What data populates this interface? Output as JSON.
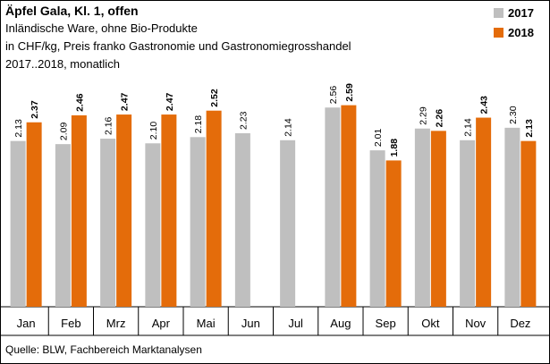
{
  "chart_data": {
    "type": "bar",
    "title": "Äpfel Gala, Kl. 1, offen",
    "subtitle": [
      "Inländische Ware, ohne Bio-Produkte",
      "in CHF/kg, Preis franko Gastronomie und Gastronomiegrosshandel",
      "2017..2018, monatlich"
    ],
    "source": "Quelle: BLW, Fachbereich Marktanalysen",
    "categories": [
      "Jan",
      "Feb",
      "Mrz",
      "Apr",
      "Mai",
      "Jun",
      "Jul",
      "Aug",
      "Sep",
      "Okt",
      "Nov",
      "Dez"
    ],
    "series": [
      {
        "name": "2017",
        "color": "#bfbfbf",
        "values": [
          2.13,
          2.09,
          2.16,
          2.1,
          2.18,
          2.23,
          2.14,
          2.56,
          2.01,
          2.29,
          2.14,
          2.3
        ],
        "value_labels": [
          "2.13",
          "2.09",
          "2.16",
          "2.10",
          "2.18",
          "2.23",
          "2.14",
          "2.56",
          "2.01",
          "2.29",
          "2.14",
          "2.30"
        ]
      },
      {
        "name": "2018",
        "color": "#e46c0a",
        "values": [
          2.37,
          2.46,
          2.47,
          2.47,
          2.52,
          null,
          null,
          2.59,
          1.88,
          2.26,
          2.43,
          2.13
        ],
        "value_labels": [
          "2.37",
          "2.46",
          "2.47",
          "2.47",
          "2.52",
          null,
          null,
          "2.59",
          "1.88",
          "2.26",
          "2.43",
          "2.13"
        ]
      }
    ],
    "ylim": [
      0,
      2.85
    ],
    "legend": "top-right"
  }
}
